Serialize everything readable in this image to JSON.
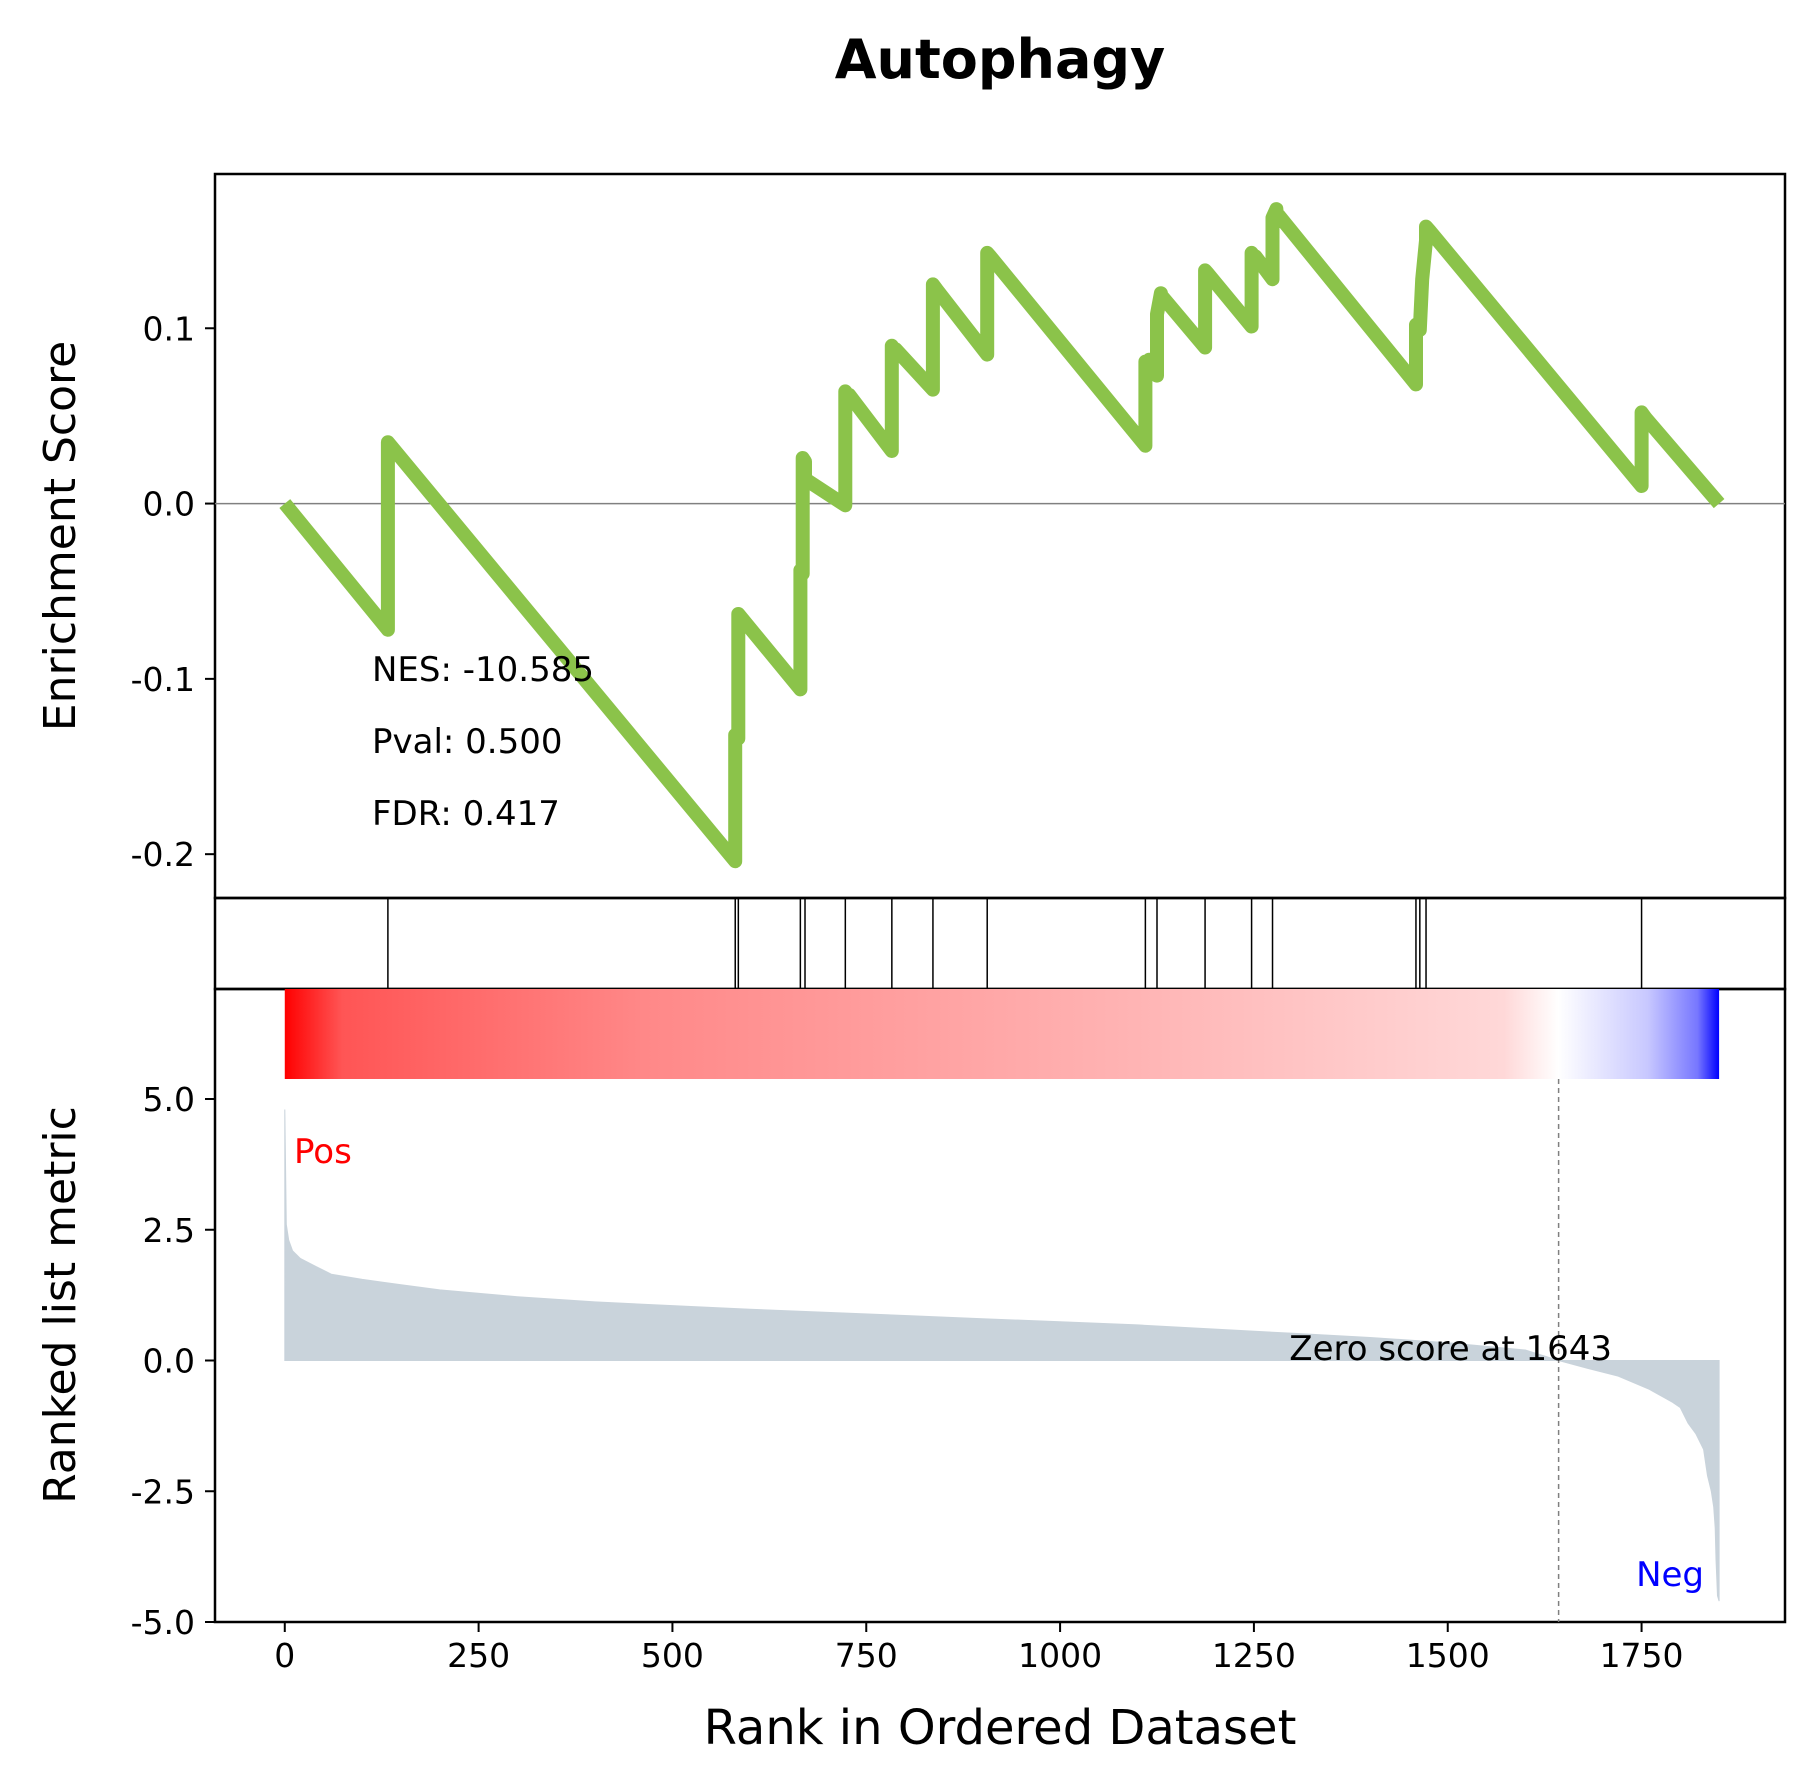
{
  "chart_data": [
    {
      "type": "line",
      "title": "Autophagy",
      "ylabel": "Enrichment Score",
      "ylim": [
        -0.225,
        0.188
      ],
      "yticks": [
        0.1,
        0.0,
        -0.1,
        -0.2
      ],
      "ytick_labels": [
        "0.1",
        "0.0",
        "-0.1",
        "-0.2"
      ],
      "series": [
        {
          "color": "#8bc34a",
          "x": [
            0,
            133,
            133,
            581,
            581,
            585,
            585,
            665,
            665,
            668,
            668,
            671,
            671,
            723,
            723,
            728,
            728,
            783,
            783,
            788,
            788,
            836,
            836,
            841,
            841,
            906,
            906,
            910,
            910,
            1110,
            1110,
            1115,
            1115,
            1125,
            1125,
            1130,
            1130,
            1187,
            1187,
            1191,
            1191,
            1247,
            1247,
            1252,
            1252,
            1274,
            1274,
            1279,
            1279,
            1459,
            1459,
            1464,
            1464,
            1467,
            1467,
            1472,
            1472,
            1476,
            1476,
            1750,
            1750,
            1755,
            1755,
            1850
          ],
          "y": [
            0.0,
            -0.072,
            0.035,
            -0.204,
            -0.132,
            -0.134,
            -0.063,
            -0.106,
            -0.038,
            -0.04,
            0.026,
            0.024,
            0.014,
            -0.001,
            0.064,
            0.061,
            0.062,
            0.03,
            0.09,
            0.087,
            0.088,
            0.065,
            0.125,
            0.122,
            0.122,
            0.085,
            0.143,
            0.141,
            0.141,
            0.033,
            0.081,
            0.078,
            0.082,
            0.073,
            0.108,
            0.12,
            0.119,
            0.089,
            0.133,
            0.131,
            0.131,
            0.101,
            0.143,
            0.14,
            0.141,
            0.128,
            0.163,
            0.168,
            0.166,
            0.068,
            0.102,
            0.099,
            0.099,
            0.128,
            0.128,
            0.15,
            0.158,
            0.156,
            0.156,
            0.01,
            0.052,
            0.049,
            0.049,
            0.0
          ]
        }
      ],
      "annotations": [
        "NES: -10.585",
        "Pval: 0.500",
        "FDR: 0.417"
      ]
    },
    {
      "type": "hits",
      "hits": [
        133,
        581,
        585,
        665,
        671,
        723,
        783,
        836,
        906,
        1110,
        1125,
        1187,
        1247,
        1274,
        1459,
        1464,
        1472,
        1750
      ]
    },
    {
      "type": "area",
      "xlabel": "Rank in Ordered Dataset",
      "ylabel": "Ranked list metric",
      "xlim": [
        -90,
        1935
      ],
      "ylim": [
        -5.0,
        5.0
      ],
      "yticks": [
        5.0,
        2.5,
        0.0,
        -2.5,
        -5.0
      ],
      "ytick_labels": [
        "5.0",
        "2.5",
        "0.0",
        "-2.5",
        "-5.0"
      ],
      "xticks": [
        0,
        250,
        500,
        750,
        1000,
        1250,
        1500,
        1750
      ],
      "xtick_labels": [
        "0",
        "250",
        "500",
        "750",
        "1000",
        "1250",
        "1500",
        "1750"
      ],
      "fill_color": "#c9d3db",
      "series": [
        {
          "x": [
            0,
            2,
            5,
            10,
            20,
            40,
            60,
            100,
            150,
            200,
            300,
            400,
            500,
            600,
            700,
            800,
            900,
            1000,
            1100,
            1200,
            1300,
            1400,
            1500,
            1600,
            1643,
            1680,
            1720,
            1760,
            1790,
            1800,
            1810,
            1820,
            1830,
            1835,
            1840,
            1843,
            1845,
            1846,
            1848,
            1850
          ],
          "y": [
            4.8,
            2.6,
            2.3,
            2.1,
            1.95,
            1.8,
            1.65,
            1.55,
            1.45,
            1.35,
            1.22,
            1.12,
            1.05,
            0.98,
            0.92,
            0.86,
            0.8,
            0.74,
            0.68,
            0.6,
            0.52,
            0.44,
            0.34,
            0.2,
            0.0,
            -0.15,
            -0.3,
            -0.55,
            -0.8,
            -0.9,
            -1.2,
            -1.4,
            -1.7,
            -2.2,
            -2.5,
            -2.8,
            -3.2,
            -3.8,
            -4.5,
            -4.6
          ]
        }
      ],
      "zero_cross": 1643,
      "zero_label": "Zero score at 1643",
      "pos_label": "Pos",
      "neg_label": "Neg",
      "pos_color": "#ff0000",
      "neg_color": "#0000ff"
    }
  ]
}
